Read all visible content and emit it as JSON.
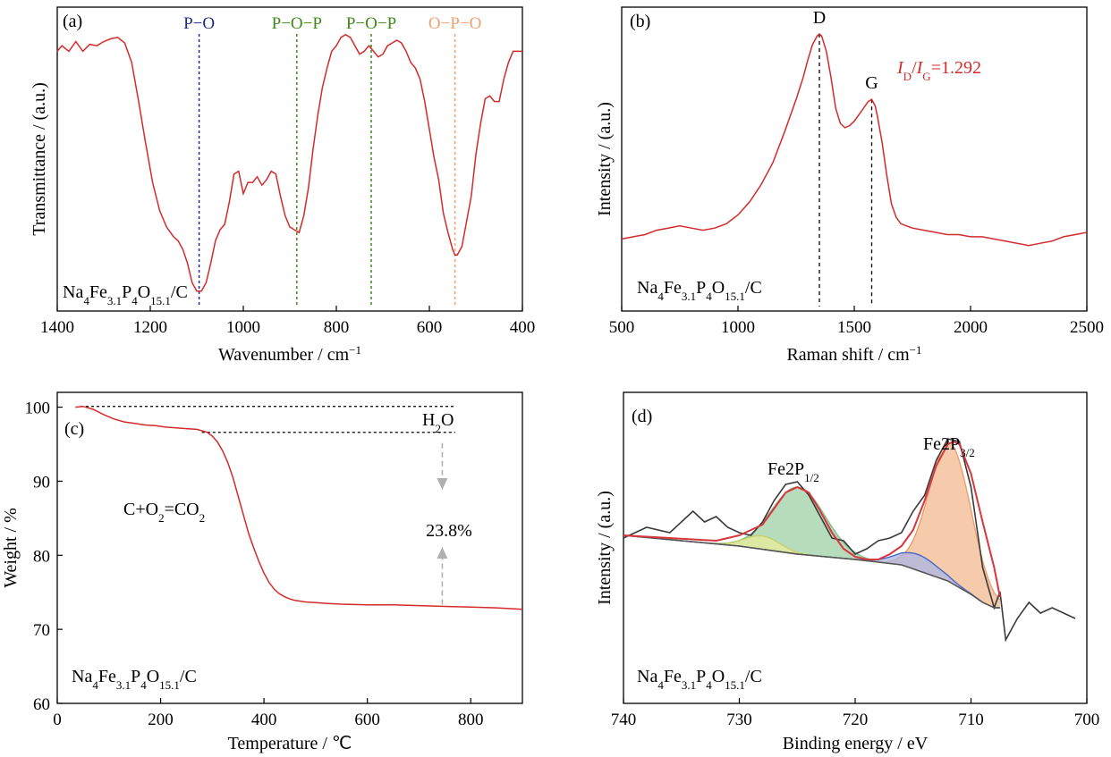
{
  "panels": {
    "a": {
      "tag": "(a)",
      "xlabel": "Wavenumber / cm",
      "xlabel_sup": "−1",
      "ylabel": "Transmittance / (a.u.)",
      "sample": [
        "Na",
        "4",
        "Fe",
        "3.1",
        "P",
        "4",
        "O",
        "15.1",
        "/C"
      ]
    },
    "b": {
      "tag": "(b)",
      "xlabel": "Raman shift / cm",
      "xlabel_sup": "−1",
      "ylabel": "Intensity / (a.u.)",
      "ratio_label": [
        "I",
        "D",
        "/",
        "I",
        "G",
        "=1.292"
      ],
      "sample": [
        "Na",
        "4",
        "Fe",
        "3.1",
        "P",
        "4",
        "O",
        "15.1",
        "/C"
      ]
    },
    "c": {
      "tag": "(c)",
      "xlabel": "Temperature / ℃",
      "ylabel": "Weight / %",
      "reaction": [
        "C+O",
        "2",
        "=CO",
        "2"
      ],
      "water": [
        "H",
        "2",
        "O"
      ],
      "sample": [
        "Na",
        "4",
        "Fe",
        "3.1",
        "P",
        "4",
        "O",
        "15.1",
        "/C"
      ]
    },
    "d": {
      "tag": "(d)",
      "xlabel": "Binding energy / eV",
      "ylabel": "Intensity / (a.u.)",
      "peak1": [
        "Fe2P",
        "1/2"
      ],
      "peak2": [
        "Fe2P",
        "3/2"
      ],
      "sample": [
        "Na",
        "4",
        "Fe",
        "3.1",
        "P",
        "4",
        "O",
        "15.1",
        "/C"
      ]
    }
  },
  "chart_data": [
    {
      "panel": "a",
      "type": "line",
      "xlim": [
        1400,
        400
      ],
      "x_reversed": true,
      "xticks": [
        1400,
        1200,
        1000,
        800,
        600,
        400
      ],
      "yticks_shown": false,
      "color": "#d42a2a",
      "series": [
        {
          "x": [
            1400,
            1390,
            1375,
            1360,
            1345,
            1330,
            1315,
            1300,
            1285,
            1270,
            1255,
            1240,
            1225,
            1210,
            1195,
            1180,
            1165,
            1150,
            1140,
            1130,
            1120,
            1110,
            1100,
            1090,
            1080,
            1070,
            1060,
            1050,
            1040,
            1030,
            1020,
            1010,
            1000,
            990,
            980,
            970,
            960,
            950,
            940,
            930,
            920,
            910,
            900,
            890,
            880,
            870,
            860,
            850,
            840,
            830,
            820,
            810,
            800,
            790,
            780,
            770,
            760,
            750,
            740,
            730,
            720,
            710,
            700,
            690,
            680,
            670,
            660,
            650,
            640,
            630,
            620,
            610,
            600,
            590,
            580,
            570,
            560,
            550,
            545,
            540,
            530,
            520,
            510,
            500,
            490,
            480,
            470,
            460,
            450,
            440,
            430,
            420,
            410,
            400
          ],
          "y": [
            0.88,
            0.9,
            0.88,
            0.915,
            0.88,
            0.905,
            0.9,
            0.915,
            0.925,
            0.93,
            0.91,
            0.84,
            0.7,
            0.55,
            0.41,
            0.31,
            0.25,
            0.215,
            0.2,
            0.17,
            0.12,
            0.05,
            0.02,
            0.02,
            0.05,
            0.12,
            0.2,
            0.24,
            0.26,
            0.34,
            0.44,
            0.45,
            0.37,
            0.41,
            0.41,
            0.43,
            0.4,
            0.42,
            0.45,
            0.44,
            0.36,
            0.29,
            0.25,
            0.24,
            0.23,
            0.29,
            0.39,
            0.53,
            0.65,
            0.75,
            0.82,
            0.88,
            0.9,
            0.93,
            0.94,
            0.93,
            0.9,
            0.87,
            0.88,
            0.9,
            0.88,
            0.86,
            0.87,
            0.9,
            0.91,
            0.92,
            0.91,
            0.88,
            0.84,
            0.82,
            0.78,
            0.7,
            0.6,
            0.5,
            0.42,
            0.3,
            0.23,
            0.17,
            0.15,
            0.15,
            0.18,
            0.27,
            0.36,
            0.51,
            0.62,
            0.71,
            0.72,
            0.7,
            0.7,
            0.78,
            0.84,
            0.88,
            0.88,
            0.88
          ]
        }
      ],
      "annotations": [
        {
          "label": "P−O",
          "x": 1095,
          "color": "#1f2a8a"
        },
        {
          "label": "P−O−P",
          "x": 885,
          "color": "#3f8a1a"
        },
        {
          "label": "P−O−P",
          "x": 725,
          "color": "#3f8a1a"
        },
        {
          "label": "O−P−O",
          "x": 545,
          "color": "#f0a070"
        }
      ]
    },
    {
      "panel": "b",
      "type": "line",
      "xlim": [
        500,
        2500
      ],
      "xticks": [
        500,
        1000,
        1500,
        2000,
        2500
      ],
      "yticks_shown": false,
      "color": "#d42a2a",
      "series": [
        {
          "x": [
            500,
            550,
            600,
            650,
            700,
            750,
            800,
            850,
            900,
            950,
            1000,
            1050,
            1100,
            1150,
            1200,
            1250,
            1280,
            1300,
            1320,
            1340,
            1350,
            1360,
            1380,
            1400,
            1420,
            1440,
            1460,
            1480,
            1500,
            1520,
            1540,
            1560,
            1575,
            1590,
            1600,
            1620,
            1640,
            1660,
            1680,
            1700,
            1750,
            1800,
            1850,
            1900,
            1950,
            2000,
            2050,
            2100,
            2150,
            2200,
            2250,
            2300,
            2350,
            2400,
            2450,
            2500
          ],
          "y": [
            0.06,
            0.07,
            0.08,
            0.1,
            0.11,
            0.12,
            0.11,
            0.1,
            0.11,
            0.13,
            0.17,
            0.23,
            0.31,
            0.41,
            0.55,
            0.7,
            0.8,
            0.88,
            0.95,
            0.99,
            1.0,
            0.99,
            0.92,
            0.8,
            0.66,
            0.59,
            0.57,
            0.58,
            0.6,
            0.63,
            0.66,
            0.69,
            0.7,
            0.67,
            0.62,
            0.5,
            0.35,
            0.22,
            0.16,
            0.13,
            0.11,
            0.1,
            0.09,
            0.08,
            0.08,
            0.07,
            0.07,
            0.06,
            0.05,
            0.04,
            0.03,
            0.04,
            0.05,
            0.07,
            0.08,
            0.09
          ]
        }
      ],
      "peaks": [
        {
          "label": "D",
          "x": 1350
        },
        {
          "label": "G",
          "x": 1575
        }
      ]
    },
    {
      "panel": "c",
      "type": "line",
      "xlim": [
        0,
        900
      ],
      "ylim": [
        60,
        102
      ],
      "xticks": [
        0,
        200,
        400,
        600,
        800
      ],
      "yticks": [
        60,
        70,
        80,
        90,
        100
      ],
      "color": "#d42a2a",
      "series": [
        {
          "x": [
            35,
            50,
            70,
            90,
            110,
            130,
            150,
            170,
            190,
            210,
            230,
            250,
            270,
            290,
            300,
            310,
            320,
            330,
            340,
            350,
            360,
            370,
            380,
            390,
            400,
            410,
            420,
            430,
            440,
            450,
            460,
            480,
            500,
            520,
            550,
            600,
            650,
            700,
            750,
            800,
            850,
            900
          ],
          "y": [
            100.0,
            100.1,
            99.7,
            99.0,
            98.4,
            98.0,
            97.8,
            97.6,
            97.5,
            97.3,
            97.2,
            97.1,
            97.0,
            96.6,
            96.1,
            95.3,
            94.1,
            92.5,
            90.5,
            88.0,
            85.5,
            83.0,
            81.0,
            79.2,
            77.6,
            76.3,
            75.4,
            74.8,
            74.4,
            74.1,
            73.9,
            73.7,
            73.6,
            73.5,
            73.4,
            73.3,
            73.3,
            73.2,
            73.1,
            73.0,
            72.9,
            72.7
          ]
        }
      ],
      "mass_loss": "23.8%"
    },
    {
      "panel": "d",
      "type": "area",
      "xlim": [
        740,
        700
      ],
      "x_reversed": true,
      "xticks": [
        740,
        730,
        720,
        710,
        700
      ],
      "yticks_shown": false,
      "series": [
        {
          "name": "",
          "kind": "raw",
          "color": "#3a3a3a",
          "x": [
            740,
            738,
            736,
            734,
            733,
            732,
            731,
            730,
            729,
            728,
            727,
            726,
            725,
            724,
            723,
            722,
            721,
            720,
            719,
            718,
            717,
            716,
            715,
            714,
            713,
            712,
            711,
            710,
            709,
            708,
            707.5,
            707,
            706,
            705,
            704,
            703,
            702,
            701
          ],
          "y": [
            0.56,
            0.6,
            0.58,
            0.66,
            0.62,
            0.64,
            0.6,
            0.58,
            0.57,
            0.62,
            0.7,
            0.76,
            0.77,
            0.72,
            0.64,
            0.56,
            0.55,
            0.5,
            0.52,
            0.55,
            0.56,
            0.58,
            0.66,
            0.72,
            0.85,
            0.93,
            0.92,
            0.75,
            0.45,
            0.3,
            0.36,
            0.18,
            0.26,
            0.32,
            0.28,
            0.3,
            0.28,
            0.26
          ]
        },
        {
          "name": "",
          "kind": "envelope",
          "color": "#d9363e",
          "x": [
            740,
            736,
            732,
            730,
            728,
            727,
            726,
            725,
            724,
            723,
            722,
            721,
            720,
            719,
            718,
            717,
            716,
            715,
            714,
            713,
            712,
            711.5,
            711,
            710,
            709,
            708,
            707.5
          ],
          "y": [
            0.57,
            0.56,
            0.55,
            0.57,
            0.61,
            0.67,
            0.73,
            0.75,
            0.73,
            0.66,
            0.58,
            0.52,
            0.49,
            0.48,
            0.48,
            0.5,
            0.53,
            0.59,
            0.7,
            0.83,
            0.91,
            0.92,
            0.91,
            0.8,
            0.62,
            0.45,
            0.34
          ]
        },
        {
          "name": "",
          "kind": "background",
          "color": "#555555",
          "x": [
            740,
            735,
            730,
            725,
            720,
            718,
            716,
            714,
            712,
            710,
            709,
            708,
            707.5
          ],
          "y": [
            0.57,
            0.55,
            0.53,
            0.5,
            0.48,
            0.47,
            0.46,
            0.43,
            0.4,
            0.35,
            0.32,
            0.3,
            0.3
          ]
        }
      ],
      "components": [
        {
          "name": "",
          "center": 724.9,
          "height": 0.25,
          "width": 2.3,
          "fill": "#9dd0a6",
          "line": "#7fbf8a"
        },
        {
          "name": "",
          "center": 728.0,
          "height": 0.05,
          "width": 1.5,
          "fill": "#eaed9a",
          "line": "#c8cf6a"
        },
        {
          "name": "",
          "center": 711.8,
          "height": 0.52,
          "width": 1.8,
          "fill": "#f2b98f",
          "line": "#e7a06e"
        },
        {
          "name": "",
          "center": 714.6,
          "height": 0.06,
          "width": 1.8,
          "fill": "#aab5e3",
          "line": "#4a67c7"
        }
      ]
    }
  ]
}
